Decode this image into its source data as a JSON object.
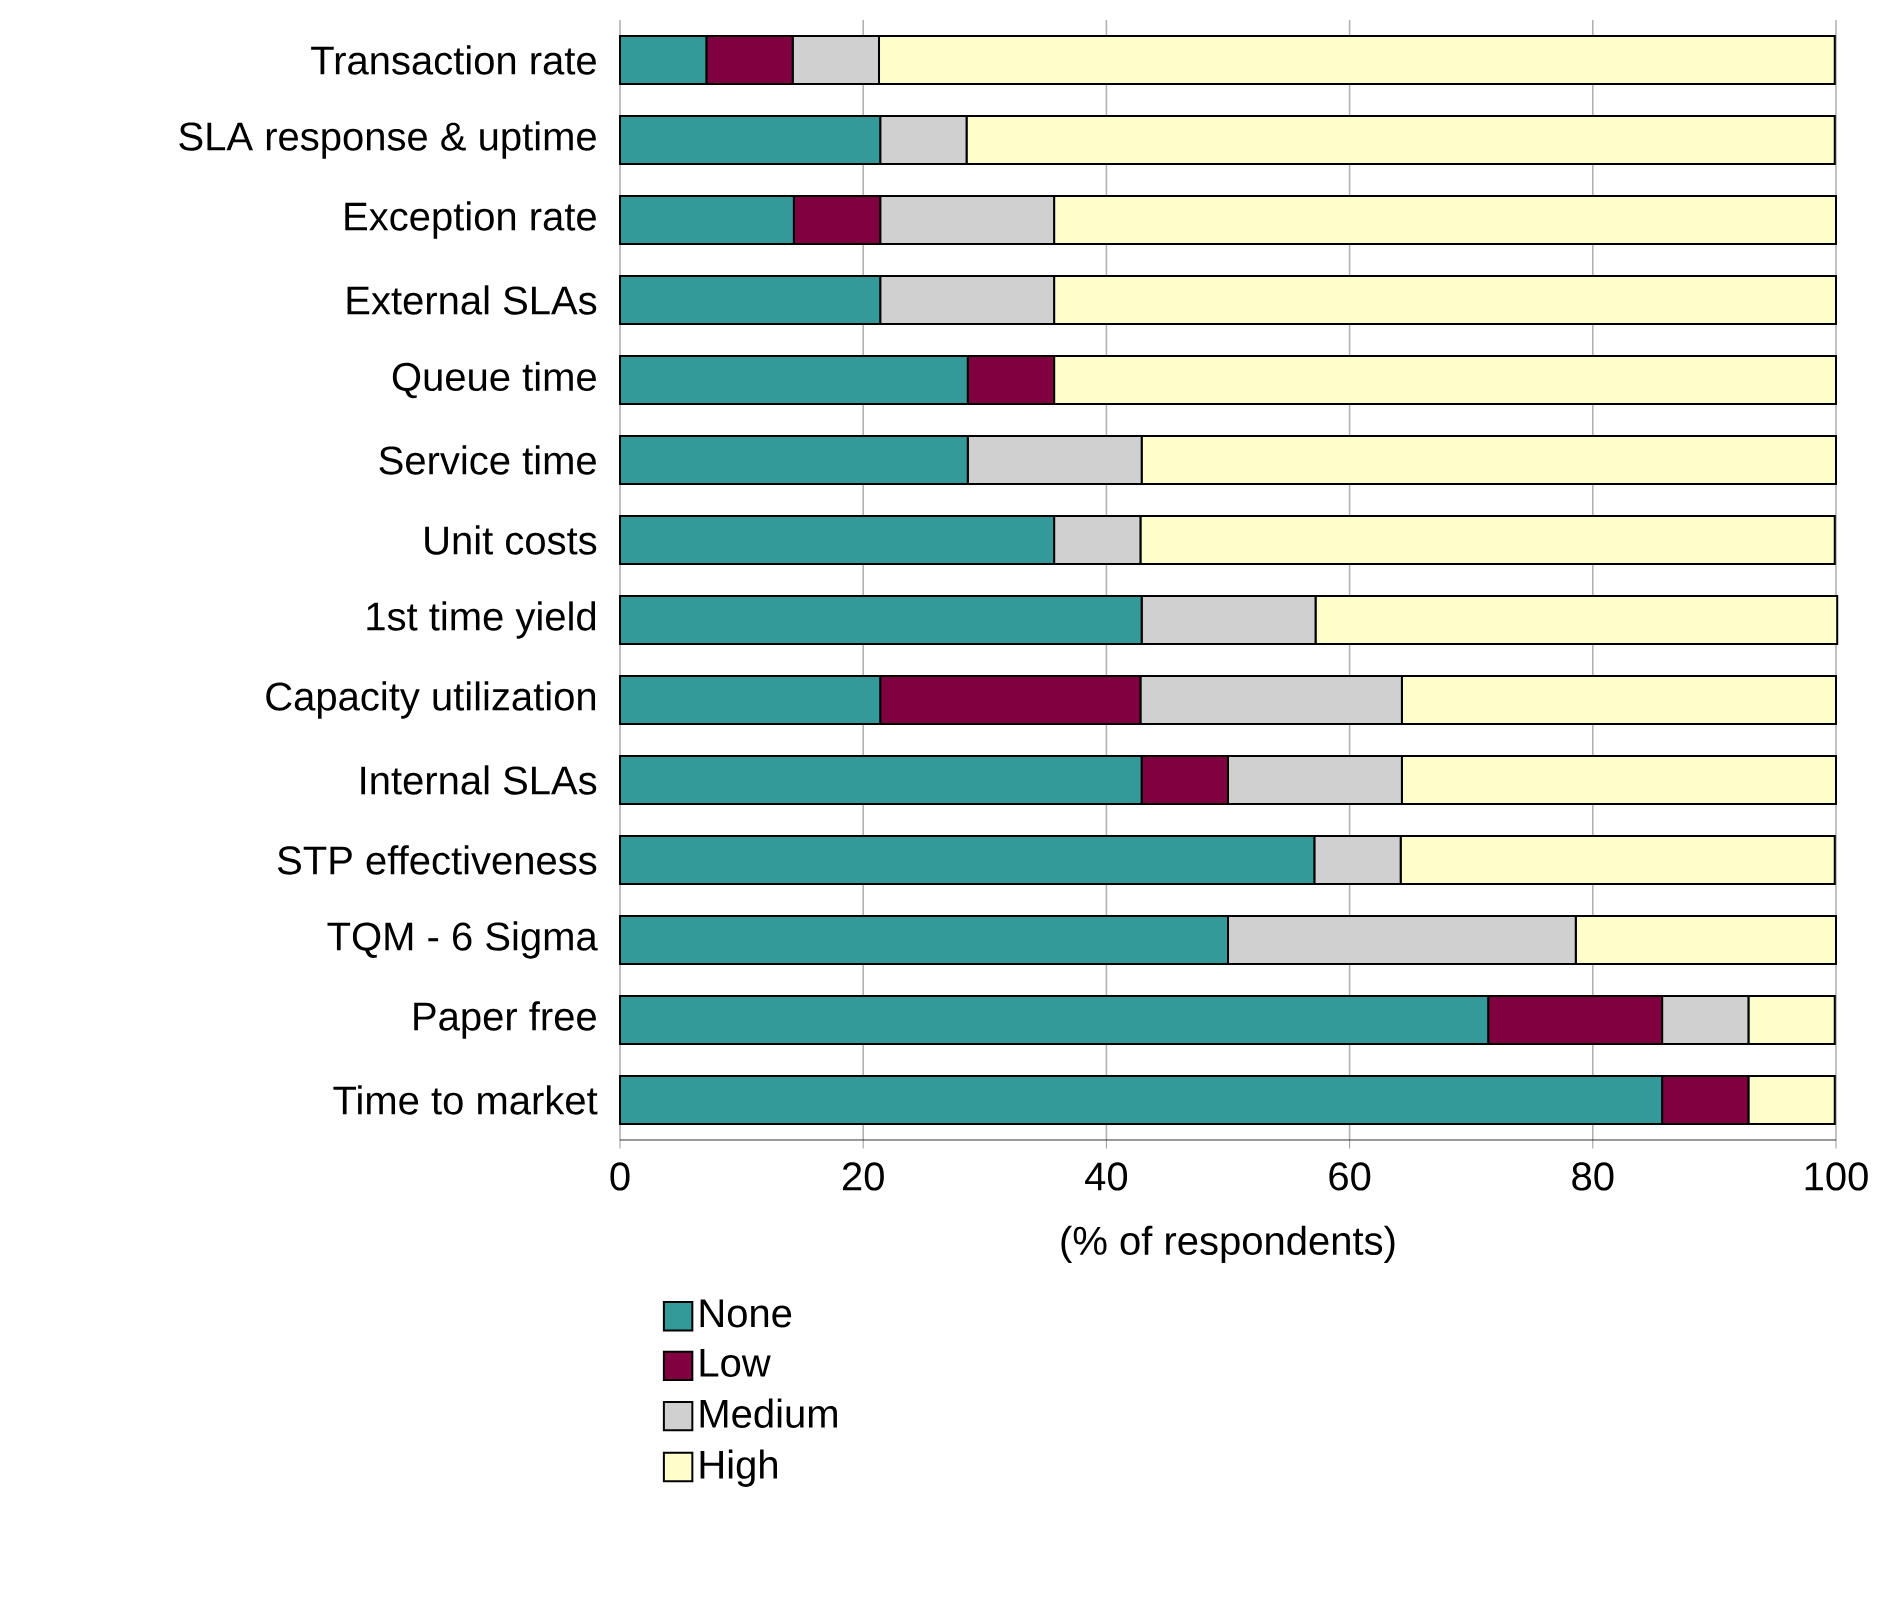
{
  "chart_data": {
    "type": "bar",
    "orientation": "horizontal",
    "stacked": true,
    "categories": [
      "Transaction rate",
      "SLA response & uptime",
      "Exception rate",
      "External SLAs",
      "Queue time",
      "Service time",
      "Unit costs",
      "1st time yield",
      "Capacity utilization",
      "Internal SLAs",
      "STP effectiveness",
      "TQM - 6 Sigma",
      "Paper free",
      "Time to market"
    ],
    "series": [
      {
        "name": "None",
        "color": "#339999",
        "values": [
          7.1,
          21.4,
          14.3,
          21.4,
          28.6,
          28.6,
          35.7,
          42.9,
          21.4,
          42.9,
          57.1,
          50,
          71.4,
          85.7
        ]
      },
      {
        "name": "Low",
        "color": "#800040",
        "values": [
          7.1,
          0,
          7.1,
          0,
          7.1,
          0,
          0,
          0,
          21.4,
          7.1,
          0,
          0,
          14.3,
          7.1
        ]
      },
      {
        "name": "Medium",
        "color": "#d0d0d0",
        "values": [
          7.1,
          7.1,
          14.3,
          14.3,
          0,
          14.3,
          7.1,
          14.3,
          21.5,
          14.3,
          7.1,
          28.6,
          7.1,
          0
        ]
      },
      {
        "name": "High",
        "color": "#ffffcc",
        "values": [
          78.6,
          71.4,
          64.3,
          64.3,
          64.3,
          57.1,
          57.1,
          42.9,
          35.7,
          35.7,
          35.7,
          21.4,
          7.1,
          7.1
        ]
      }
    ],
    "xlim": [
      0,
      100
    ],
    "xticks": [
      0,
      20,
      40,
      60,
      80,
      100
    ],
    "xlabel": "(% of respondents)",
    "grid": "x",
    "legend": "bottom"
  }
}
